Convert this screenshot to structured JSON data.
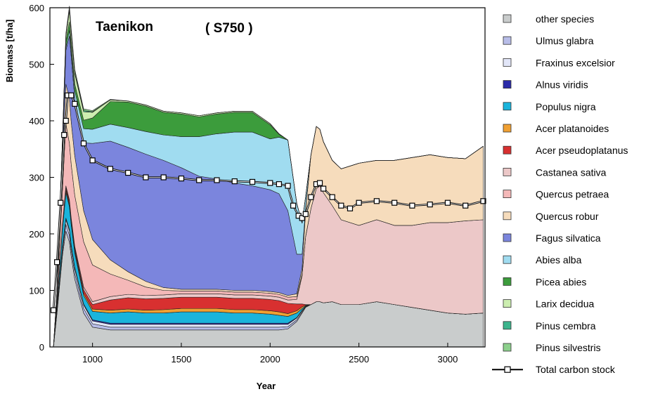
{
  "chart_data": {
    "type": "area",
    "stacked": true,
    "title": "",
    "annotations": [
      "Taenikon",
      "( S750 )"
    ],
    "xlabel": "Year",
    "ylabel": "Biomass [t/ha]",
    "xlim": [
      760,
      3210
    ],
    "ylim": [
      0,
      600
    ],
    "x_ticks": [
      1000,
      1500,
      2000,
      2500,
      3000
    ],
    "y_ticks": [
      0,
      100,
      200,
      300,
      400,
      500,
      600
    ],
    "grid": false,
    "legend_position": "right",
    "x": [
      780,
      800,
      830,
      850,
      870,
      880,
      900,
      950,
      1000,
      1100,
      1200,
      1300,
      1400,
      1500,
      1600,
      1700,
      1800,
      1900,
      2000,
      2050,
      2100,
      2150,
      2180,
      2200,
      2230,
      2260,
      2280,
      2300,
      2350,
      2400,
      2500,
      2600,
      2700,
      2800,
      2900,
      3000,
      3100,
      3200
    ],
    "series": [
      {
        "name": "other species",
        "color": "#c9cccc",
        "values": [
          0,
          60,
          160,
          205,
          185,
          160,
          120,
          60,
          35,
          30,
          30,
          30,
          30,
          30,
          30,
          30,
          30,
          30,
          30,
          30,
          32,
          45,
          60,
          70,
          75,
          80,
          80,
          78,
          80,
          75,
          75,
          80,
          75,
          70,
          65,
          60,
          58,
          60
        ]
      },
      {
        "name": "Ulmus glabra",
        "color": "#b8bde8",
        "values": [
          0,
          2,
          8,
          12,
          12,
          10,
          10,
          8,
          6,
          5,
          5,
          5,
          5,
          5,
          5,
          5,
          5,
          5,
          5,
          5,
          4,
          3,
          2,
          1,
          0,
          0,
          0,
          0,
          0,
          0,
          0,
          0,
          0,
          0,
          0,
          0,
          0,
          0
        ]
      },
      {
        "name": "Fraxinus excelsior",
        "color": "#e2e6f8",
        "values": [
          0,
          2,
          6,
          8,
          8,
          8,
          8,
          6,
          5,
          5,
          5,
          5,
          5,
          5,
          5,
          5,
          5,
          5,
          5,
          5,
          4,
          3,
          2,
          1,
          0,
          0,
          0,
          0,
          0,
          0,
          0,
          0,
          0,
          0,
          0,
          0,
          0,
          0
        ]
      },
      {
        "name": "Alnus viridis",
        "color": "#2a2aa8",
        "values": [
          0,
          1,
          2,
          3,
          3,
          3,
          3,
          2,
          2,
          2,
          2,
          2,
          2,
          2,
          2,
          2,
          2,
          2,
          2,
          2,
          2,
          1,
          1,
          0,
          0,
          0,
          0,
          0,
          0,
          0,
          0,
          0,
          0,
          0,
          0,
          0,
          0,
          0
        ]
      },
      {
        "name": "Populus nigra",
        "color": "#1ab4dc",
        "values": [
          0,
          5,
          30,
          45,
          40,
          35,
          25,
          15,
          15,
          18,
          20,
          18,
          18,
          20,
          20,
          20,
          18,
          18,
          16,
          14,
          12,
          8,
          3,
          1,
          0,
          0,
          0,
          0,
          0,
          0,
          0,
          0,
          0,
          0,
          0,
          0,
          0,
          0
        ]
      },
      {
        "name": "Acer platanoides",
        "color": "#f0a032",
        "values": [
          0,
          1,
          3,
          4,
          4,
          4,
          4,
          4,
          4,
          5,
          5,
          5,
          6,
          6,
          6,
          6,
          6,
          6,
          6,
          6,
          5,
          4,
          3,
          1,
          0,
          0,
          0,
          0,
          0,
          0,
          0,
          0,
          0,
          0,
          0,
          0,
          0,
          0
        ]
      },
      {
        "name": "Acer pseudoplatanus",
        "color": "#d83030",
        "values": [
          0,
          1,
          3,
          5,
          5,
          5,
          5,
          6,
          8,
          18,
          20,
          20,
          20,
          20,
          20,
          20,
          20,
          20,
          20,
          20,
          18,
          12,
          5,
          1,
          0,
          0,
          0,
          0,
          0,
          0,
          0,
          0,
          0,
          0,
          0,
          0,
          0,
          0
        ]
      },
      {
        "name": "Castanea sativa",
        "color": "#ecc8c8",
        "values": [
          0,
          1,
          2,
          3,
          3,
          3,
          3,
          5,
          5,
          6,
          6,
          6,
          6,
          6,
          6,
          6,
          6,
          6,
          6,
          6,
          6,
          8,
          50,
          120,
          170,
          200,
          205,
          195,
          170,
          150,
          140,
          145,
          140,
          145,
          155,
          160,
          165,
          165
        ]
      },
      {
        "name": "Quercus petraea",
        "color": "#f4b8b8",
        "values": [
          0,
          8,
          60,
          110,
          100,
          95,
          90,
          80,
          65,
          40,
          25,
          15,
          8,
          5,
          5,
          5,
          5,
          5,
          5,
          5,
          5,
          5,
          3,
          1,
          0,
          0,
          0,
          0,
          0,
          0,
          0,
          0,
          0,
          0,
          0,
          0,
          0,
          0
        ]
      },
      {
        "name": "Quercus robur",
        "color": "#f6dcbc",
        "values": [
          0,
          10,
          50,
          70,
          80,
          75,
          70,
          55,
          45,
          25,
          15,
          10,
          5,
          3,
          3,
          3,
          3,
          3,
          3,
          3,
          3,
          5,
          10,
          45,
          95,
          110,
          100,
          90,
          80,
          90,
          110,
          105,
          115,
          120,
          120,
          115,
          110,
          130
        ]
      },
      {
        "name": "Fagus silvatica",
        "color": "#7b85dd",
        "values": [
          0,
          5,
          20,
          60,
          110,
          115,
          100,
          120,
          170,
          210,
          220,
          225,
          225,
          215,
          200,
          195,
          190,
          185,
          180,
          175,
          150,
          70,
          25,
          5,
          0,
          0,
          0,
          0,
          0,
          0,
          0,
          0,
          0,
          0,
          0,
          0,
          0,
          0
        ]
      },
      {
        "name": "Abies alba",
        "color": "#a0dcf0",
        "values": [
          0,
          1,
          3,
          5,
          10,
          12,
          15,
          25,
          25,
          30,
          35,
          40,
          45,
          55,
          70,
          80,
          90,
          95,
          90,
          100,
          125,
          90,
          55,
          20,
          0,
          0,
          0,
          0,
          0,
          0,
          0,
          0,
          0,
          0,
          0,
          0,
          0,
          0
        ]
      },
      {
        "name": "Picea abies",
        "color": "#3c9c3c",
        "values": [
          0,
          2,
          8,
          12,
          15,
          12,
          12,
          15,
          20,
          40,
          45,
          45,
          40,
          40,
          35,
          35,
          35,
          35,
          25,
          5,
          0,
          0,
          0,
          0,
          0,
          0,
          0,
          0,
          0,
          0,
          0,
          0,
          0,
          0,
          0,
          0,
          0,
          0
        ]
      },
      {
        "name": "Larix decidua",
        "color": "#cceeb0",
        "values": [
          0,
          2,
          5,
          8,
          20,
          18,
          18,
          15,
          10,
          3,
          2,
          2,
          2,
          2,
          2,
          2,
          2,
          2,
          2,
          1,
          0,
          0,
          0,
          0,
          0,
          0,
          0,
          0,
          0,
          0,
          0,
          0,
          0,
          0,
          0,
          0,
          0,
          0
        ]
      },
      {
        "name": "Pinus cembra",
        "color": "#3cb48c",
        "values": [
          0,
          0,
          1,
          2,
          3,
          3,
          3,
          2,
          1,
          0,
          0,
          0,
          0,
          0,
          0,
          0,
          0,
          0,
          0,
          0,
          0,
          0,
          0,
          0,
          0,
          0,
          0,
          0,
          0,
          0,
          0,
          0,
          0,
          0,
          0,
          0,
          0,
          0
        ]
      },
      {
        "name": "Pinus silvestris",
        "color": "#8cd08c",
        "values": [
          0,
          0,
          1,
          3,
          5,
          5,
          5,
          3,
          2,
          1,
          0,
          0,
          0,
          0,
          0,
          0,
          0,
          0,
          0,
          0,
          0,
          0,
          0,
          0,
          0,
          0,
          0,
          0,
          0,
          0,
          0,
          0,
          0,
          0,
          0,
          0,
          0,
          0
        ]
      }
    ],
    "line_series": {
      "name": "Total carbon stock",
      "color": "#000000",
      "x": [
        780,
        800,
        820,
        840,
        850,
        860,
        880,
        900,
        950,
        1000,
        1100,
        1200,
        1300,
        1400,
        1500,
        1600,
        1700,
        1800,
        1900,
        2000,
        2050,
        2100,
        2130,
        2160,
        2180,
        2200,
        2230,
        2260,
        2280,
        2300,
        2350,
        2400,
        2450,
        2500,
        2600,
        2700,
        2800,
        2900,
        3000,
        3100,
        3200
      ],
      "values": [
        65,
        150,
        255,
        375,
        400,
        445,
        445,
        430,
        360,
        330,
        315,
        308,
        300,
        300,
        298,
        295,
        295,
        293,
        292,
        290,
        288,
        285,
        250,
        232,
        228,
        235,
        265,
        288,
        290,
        280,
        265,
        250,
        245,
        255,
        258,
        255,
        250,
        252,
        255,
        250,
        258
      ]
    }
  }
}
